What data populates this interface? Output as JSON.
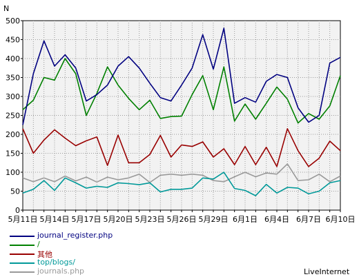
{
  "chart_data": {
    "type": "line",
    "ylabel": "N",
    "ylim": [
      0,
      500
    ],
    "yticks": [
      0,
      50,
      100,
      150,
      200,
      250,
      300,
      350,
      400,
      450,
      500
    ],
    "x": [
      "5月11日",
      "5月12日",
      "5月13日",
      "5月14日",
      "5月15日",
      "5月16日",
      "5月17日",
      "5月18日",
      "5月19日",
      "5月20日",
      "5月21日",
      "5月22日",
      "5月23日",
      "5月24日",
      "5月25日",
      "5月26日",
      "5月27日",
      "5月28日",
      "5月29日",
      "5月30日",
      "5月31日",
      "6月1日",
      "6月2日",
      "6月3日",
      "6月4日",
      "6月5日",
      "6月6日",
      "6月7日",
      "6月8日",
      "6月9日",
      "6月10日"
    ],
    "xticks": [
      "5月11日",
      "5月14日",
      "5月17日",
      "5月20日",
      "5月23日",
      "5月26日",
      "5月29日",
      "6月1日",
      "6月4日",
      "6月7日",
      "6月10日"
    ],
    "grid": true,
    "legend_position": "bottom-left",
    "series": [
      {
        "name": "journal_register.php",
        "color": "#000080",
        "values": [
          225,
          360,
          447,
          380,
          410,
          375,
          288,
          305,
          330,
          380,
          405,
          375,
          335,
          297,
          288,
          330,
          375,
          463,
          372,
          480,
          282,
          297,
          285,
          340,
          358,
          350,
          270,
          232,
          250,
          388,
          403
        ]
      },
      {
        "name": "/",
        "color": "#008000",
        "values": [
          265,
          290,
          350,
          343,
          400,
          360,
          250,
          308,
          378,
          330,
          295,
          265,
          290,
          242,
          247,
          248,
          305,
          355,
          265,
          378,
          235,
          280,
          240,
          282,
          325,
          293,
          230,
          255,
          240,
          275,
          355
        ]
      },
      {
        "name": "其他",
        "color": "#990000",
        "values": [
          215,
          150,
          185,
          212,
          190,
          170,
          183,
          193,
          118,
          198,
          125,
          125,
          147,
          197,
          140,
          172,
          168,
          180,
          140,
          162,
          120,
          168,
          120,
          166,
          115,
          215,
          157,
          115,
          137,
          182,
          157
        ]
      },
      {
        "name": "top/blogs/",
        "color": "#009999",
        "values": [
          45,
          55,
          78,
          52,
          85,
          72,
          58,
          63,
          60,
          72,
          70,
          67,
          72,
          48,
          55,
          55,
          58,
          85,
          82,
          100,
          57,
          52,
          38,
          68,
          45,
          60,
          58,
          43,
          50,
          72,
          78
        ]
      },
      {
        "name": "journals.php",
        "color": "#999999",
        "values": [
          85,
          75,
          85,
          75,
          90,
          77,
          87,
          74,
          87,
          80,
          85,
          95,
          73,
          92,
          95,
          92,
          95,
          92,
          78,
          75,
          88,
          100,
          88,
          98,
          95,
          122,
          78,
          80,
          95,
          75,
          90
        ]
      }
    ]
  },
  "brand": "LiveInternet"
}
